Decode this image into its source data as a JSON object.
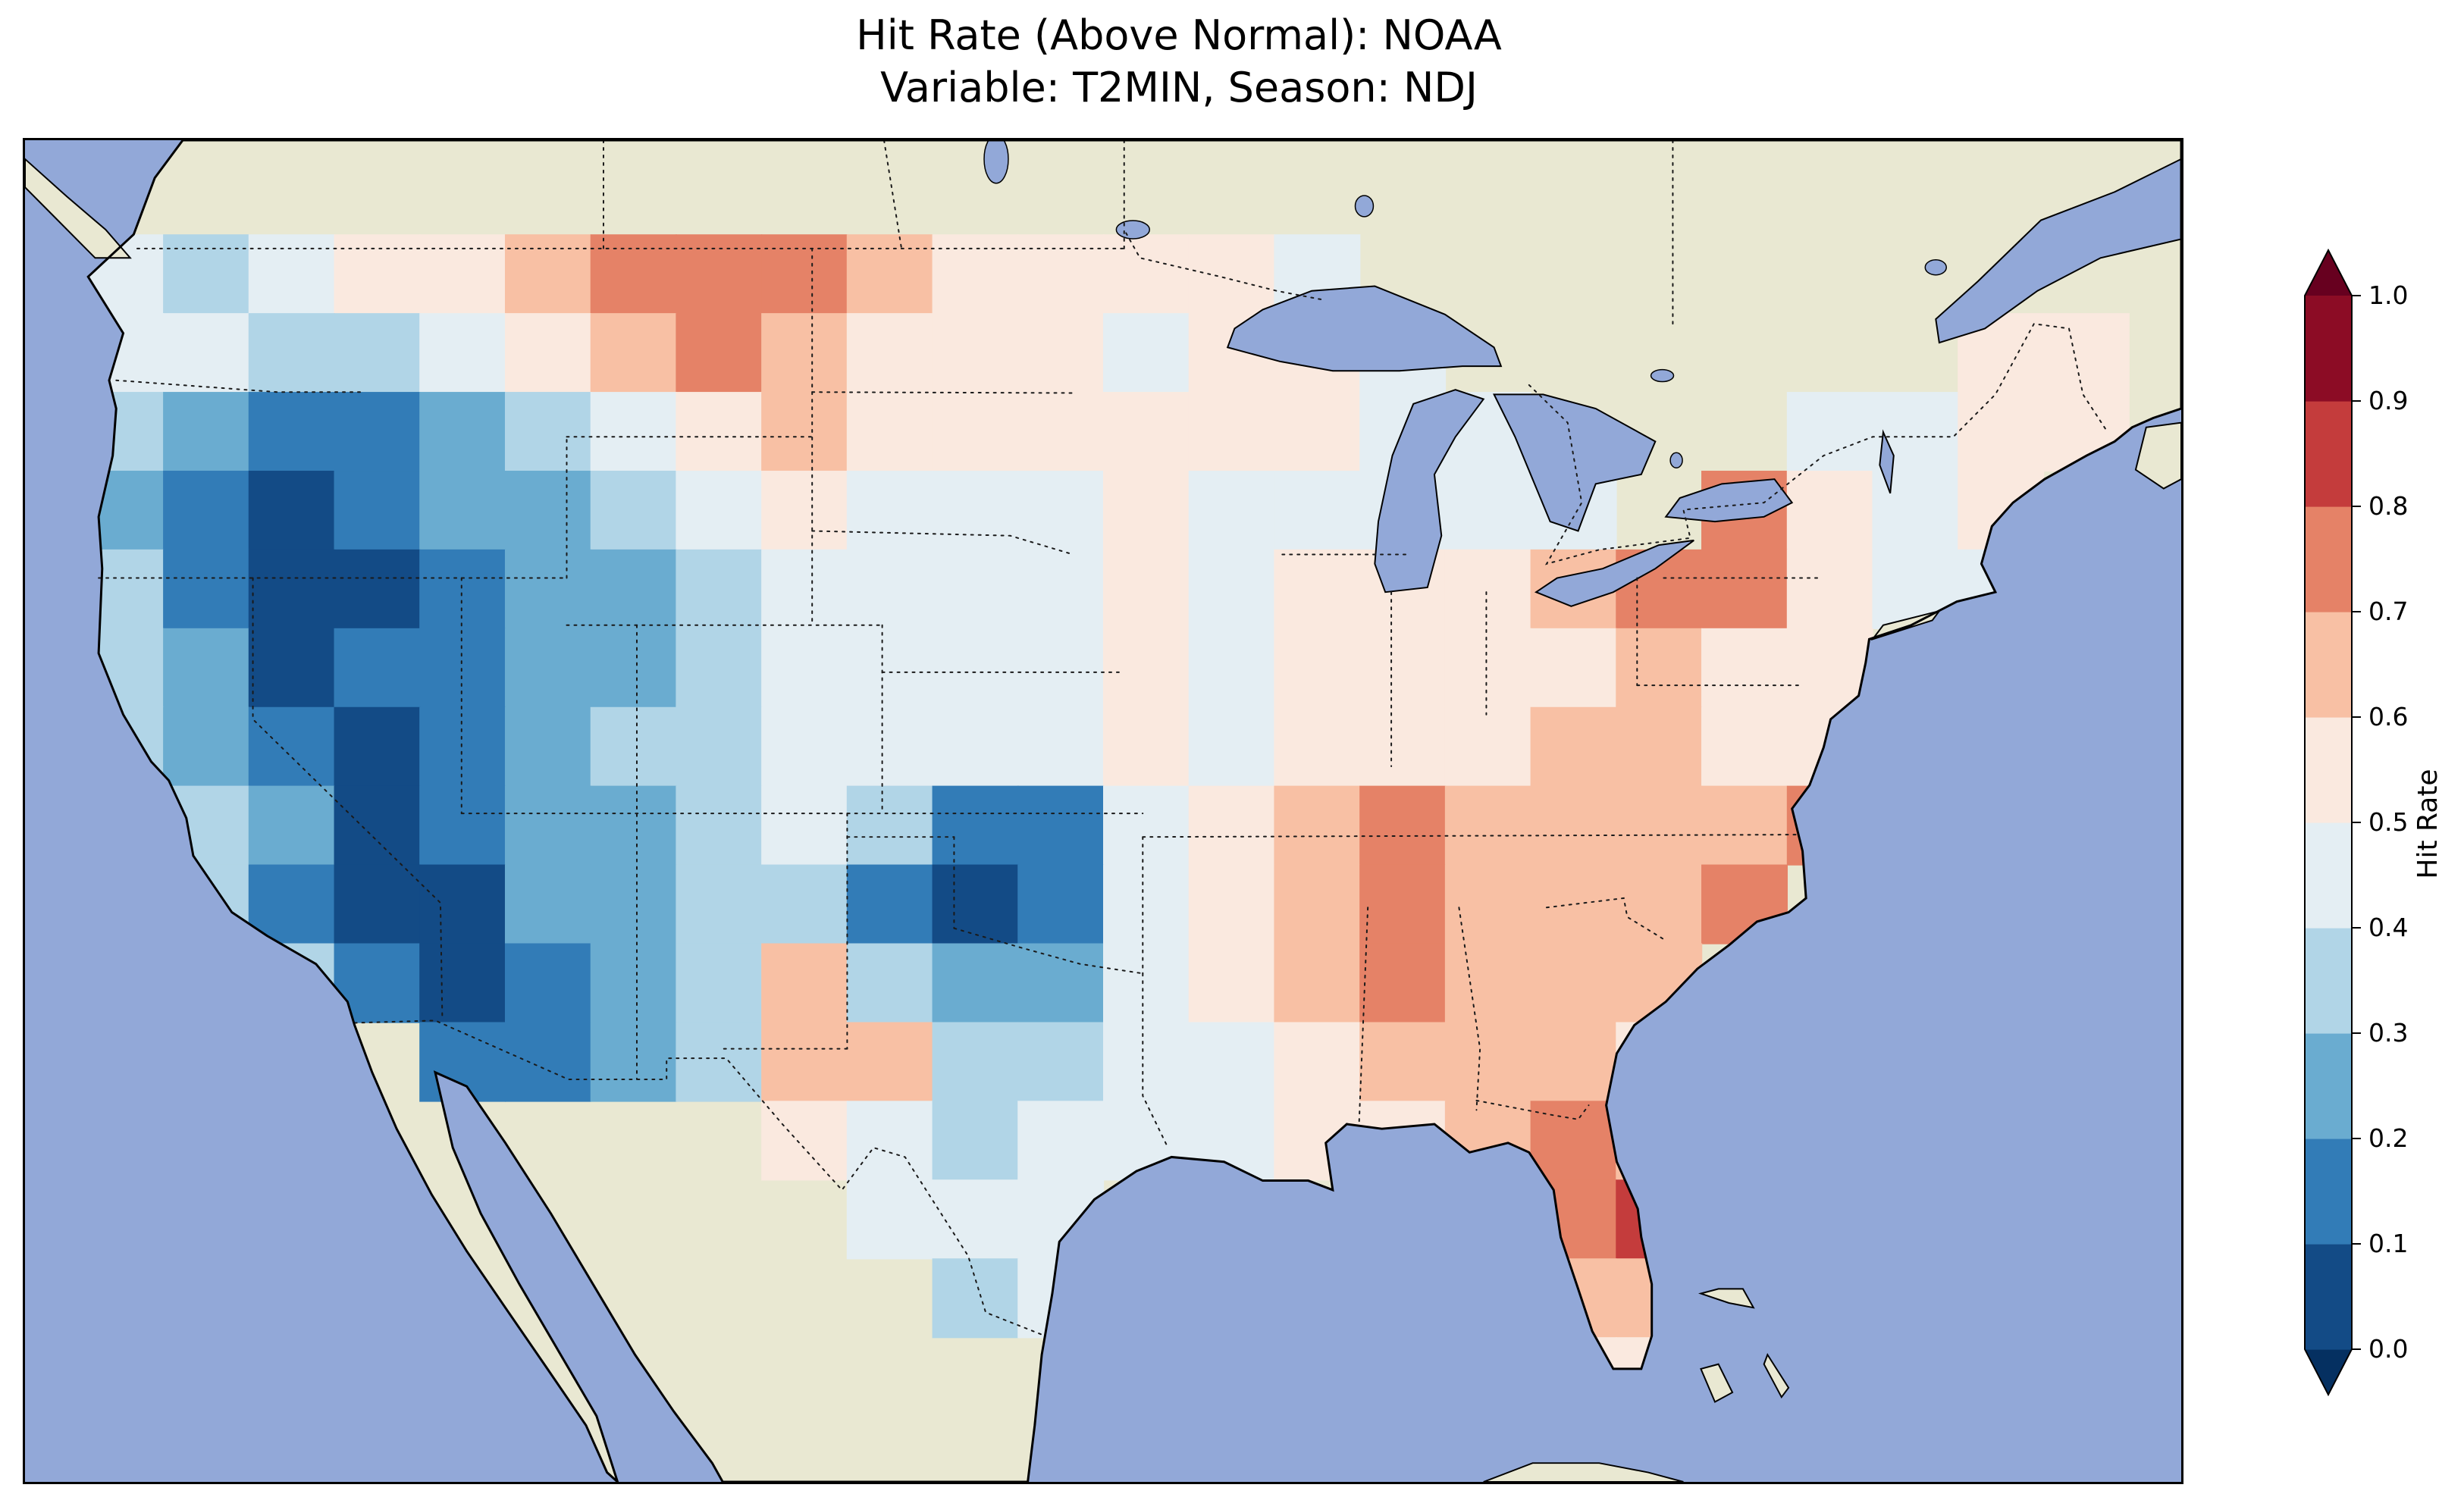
{
  "figure": {
    "title_line1": "Hit Rate (Above Normal): NOAA",
    "title_line2": "Variable: T2MIN, Season: NDJ"
  },
  "colorbar": {
    "label": "Hit Rate",
    "ticks": [
      "1.0",
      "0.9",
      "0.8",
      "0.7",
      "0.6",
      "0.5",
      "0.4",
      "0.3",
      "0.2",
      "0.1",
      "0.0"
    ],
    "bin_colors": [
      "#134b86",
      "#327cb7",
      "#6aacd0",
      "#b1d5e7",
      "#e4eef3",
      "#fae9df",
      "#f8c0a4",
      "#e58267",
      "#c43c3c",
      "#8c0c25"
    ],
    "extend_low_color": "#053061",
    "extend_high_color": "#67001f"
  },
  "map_colors": {
    "ocean": "#92a8d8",
    "land": "#e9e8d2",
    "coastline": "#000000",
    "borders": "#1a1a1a"
  },
  "chart_data": {
    "type": "heatmap",
    "title": "Hit Rate (Above Normal): NOAA — Variable: T2MIN, Season: NDJ",
    "colorbar_label": "Hit Rate",
    "colormap": "RdBu_r",
    "levels": [
      0.0,
      0.1,
      0.2,
      0.3,
      0.4,
      0.5,
      0.6,
      0.7,
      0.8,
      0.9,
      1.0
    ],
    "extent_lon": [
      -126.5,
      -65.0
    ],
    "extent_lat": [
      22.8,
      51.3
    ],
    "lon_start": -125.0,
    "lon_step": 2.4375,
    "lat_start": 49.3,
    "lat_step": -1.6733,
    "values": [
      [
        0.45,
        0.35,
        0.45,
        0.55,
        0.55,
        0.65,
        0.75,
        0.75,
        0.75,
        0.65,
        0.55,
        0.55,
        0.55,
        0.55,
        0.45,
        null,
        null,
        null,
        null,
        null,
        null,
        null,
        null,
        null
      ],
      [
        0.45,
        0.45,
        0.35,
        0.35,
        0.45,
        0.55,
        0.65,
        0.75,
        0.65,
        0.55,
        0.55,
        0.55,
        0.45,
        0.55,
        0.55,
        0.45,
        null,
        null,
        null,
        null,
        null,
        null,
        0.55,
        0.55
      ],
      [
        0.35,
        0.25,
        0.15,
        0.15,
        0.25,
        0.35,
        0.45,
        0.55,
        0.65,
        0.55,
        0.55,
        0.55,
        0.55,
        0.55,
        0.55,
        0.45,
        0.45,
        null,
        null,
        null,
        0.45,
        0.45,
        0.55,
        0.55
      ],
      [
        0.25,
        0.15,
        0.05,
        0.15,
        0.25,
        0.25,
        0.35,
        0.45,
        0.55,
        0.45,
        0.45,
        0.45,
        0.55,
        0.45,
        0.45,
        0.45,
        0.45,
        0.45,
        null,
        0.75,
        0.55,
        0.45,
        0.55,
        null
      ],
      [
        0.35,
        0.15,
        0.05,
        0.05,
        0.15,
        0.25,
        0.25,
        0.35,
        0.45,
        0.45,
        0.45,
        0.45,
        0.55,
        0.45,
        0.55,
        0.55,
        0.55,
        0.65,
        0.75,
        0.75,
        0.55,
        0.45,
        0.45,
        null
      ],
      [
        0.35,
        0.25,
        0.05,
        0.15,
        0.15,
        0.25,
        0.25,
        0.35,
        0.45,
        0.45,
        0.45,
        0.45,
        0.55,
        0.45,
        0.55,
        0.55,
        0.55,
        0.55,
        0.65,
        0.55,
        0.55,
        null,
        null,
        null
      ],
      [
        0.35,
        0.25,
        0.15,
        0.05,
        0.15,
        0.25,
        0.35,
        0.35,
        0.45,
        0.45,
        0.45,
        0.45,
        0.55,
        0.45,
        0.55,
        0.55,
        0.55,
        0.65,
        0.65,
        0.55,
        0.55,
        null,
        null,
        null
      ],
      [
        null,
        0.35,
        0.25,
        0.05,
        0.15,
        0.25,
        0.25,
        0.35,
        0.45,
        0.35,
        0.15,
        0.15,
        0.45,
        0.55,
        0.65,
        0.75,
        0.65,
        0.65,
        0.65,
        0.65,
        0.75,
        null,
        null,
        null
      ],
      [
        null,
        0.35,
        0.15,
        0.05,
        0.05,
        0.25,
        0.25,
        0.35,
        0.35,
        0.15,
        0.05,
        0.15,
        0.45,
        0.55,
        0.65,
        0.75,
        0.65,
        0.65,
        0.65,
        0.75,
        null,
        null,
        null,
        null
      ],
      [
        null,
        null,
        0.35,
        0.15,
        0.05,
        0.15,
        0.25,
        0.35,
        0.65,
        0.35,
        0.25,
        0.25,
        0.45,
        0.55,
        0.65,
        0.75,
        0.65,
        0.65,
        0.65,
        null,
        null,
        null,
        null,
        null
      ],
      [
        null,
        null,
        null,
        null,
        0.15,
        0.15,
        0.25,
        0.35,
        0.65,
        0.65,
        0.35,
        0.35,
        0.45,
        0.45,
        0.55,
        0.65,
        0.65,
        0.65,
        0.55,
        null,
        null,
        null,
        null,
        null
      ],
      [
        null,
        null,
        null,
        null,
        null,
        null,
        null,
        null,
        0.55,
        0.45,
        0.35,
        0.45,
        0.45,
        0.45,
        0.55,
        0.55,
        0.65,
        0.75,
        0.65,
        null,
        null,
        null,
        null,
        null
      ],
      [
        null,
        null,
        null,
        null,
        null,
        null,
        null,
        null,
        null,
        0.45,
        0.45,
        0.45,
        null,
        null,
        null,
        null,
        null,
        0.75,
        0.85,
        null,
        null,
        null,
        null,
        null
      ],
      [
        null,
        null,
        null,
        null,
        null,
        null,
        null,
        null,
        null,
        null,
        0.35,
        0.45,
        null,
        null,
        null,
        null,
        null,
        0.65,
        0.65,
        null,
        null,
        null,
        null,
        null
      ],
      [
        null,
        null,
        null,
        null,
        null,
        null,
        null,
        null,
        null,
        null,
        null,
        null,
        null,
        null,
        null,
        null,
        null,
        0.55,
        0.55,
        null,
        null,
        null,
        null,
        null
      ]
    ]
  }
}
